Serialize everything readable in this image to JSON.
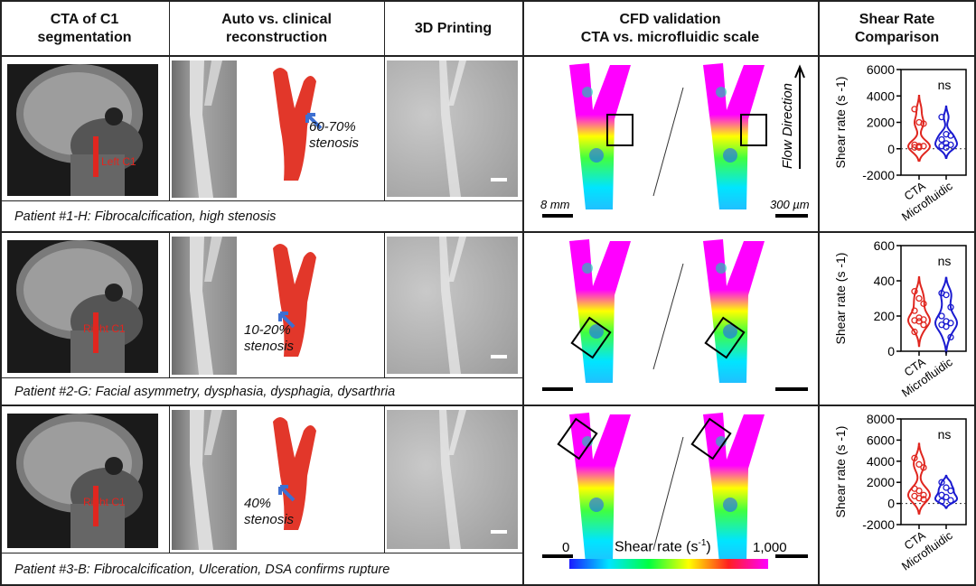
{
  "headers": [
    "CTA of C1\nsegmentation",
    "Auto vs. clinical\nreconstruction",
    "3D Printing",
    "CFD validation\nCTA vs. microfluidic scale",
    "Shear Rate\nComparison"
  ],
  "rows": [
    {
      "caption": "Patient #1-H: Fibrocalcification, high stenosis",
      "ct_label": "Left C1",
      "stenosis": "60-70%\nstenosis"
    },
    {
      "caption": "Patient #2-G: Facial asymmetry, dysphasia, dysphagia, dysarthria",
      "ct_label": "Right C1",
      "stenosis": "10-20%\nstenosis"
    },
    {
      "caption": "Patient #3-B: Fibrocalcification, Ulceration, DSA confirms rupture",
      "ct_label": "Right C1",
      "stenosis": "40%\nstenosis"
    }
  ],
  "cfd": {
    "scale_left": "8 mm",
    "scale_right": "300 µm",
    "flow": "Flow Direction"
  },
  "colorbar": {
    "min": "0",
    "max": "1,000",
    "label": "Shear rate (s",
    "label_sup": "-1",
    "label_end": ")",
    "colors": [
      "#1a1aff",
      "#00e5ff",
      "#00ff40",
      "#ffff00",
      "#ff2020",
      "#ff00ff"
    ]
  },
  "colors": {
    "cta": "#e0261f",
    "microfluidic": "#1a1ad0",
    "model": "#e2372a"
  },
  "chart_data": [
    {
      "type": "violin",
      "ylabel": "Shear rate (s -1)",
      "categories": [
        "CTA",
        "Microfluidic"
      ],
      "yticks": [
        -2000,
        0,
        2000,
        4000,
        6000
      ],
      "ylim": [
        -2000,
        6000
      ],
      "annotation": "ns",
      "series": [
        {
          "values": [
            3000,
            2000,
            1900,
            300,
            200,
            200,
            100,
            100
          ]
        },
        {
          "values": [
            2400,
            1100,
            1000,
            700,
            400,
            300,
            200,
            100
          ]
        }
      ]
    },
    {
      "type": "violin",
      "ylabel": "Shear rate (s -1)",
      "categories": [
        "CTA",
        "Microfluidic"
      ],
      "yticks": [
        0,
        200,
        400,
        600
      ],
      "ylim": [
        0,
        600
      ],
      "annotation": "ns",
      "series": [
        {
          "values": [
            340,
            300,
            270,
            230,
            190,
            180,
            175,
            170,
            150,
            110
          ]
        },
        {
          "values": [
            330,
            320,
            250,
            200,
            170,
            160,
            150,
            140,
            80
          ]
        }
      ]
    },
    {
      "type": "violin",
      "ylabel": "Shear rate (s -1)",
      "categories": [
        "CTA",
        "Microfluidic"
      ],
      "yticks": [
        -2000,
        0,
        2000,
        4000,
        6000,
        8000
      ],
      "ylim": [
        -2000,
        8000
      ],
      "annotation": "ns",
      "series": [
        {
          "values": [
            4300,
            3700,
            3400,
            1400,
            1200,
            800,
            700,
            500,
            400
          ]
        },
        {
          "values": [
            2000,
            1500,
            1200,
            800,
            600,
            300,
            200
          ]
        }
      ]
    }
  ]
}
